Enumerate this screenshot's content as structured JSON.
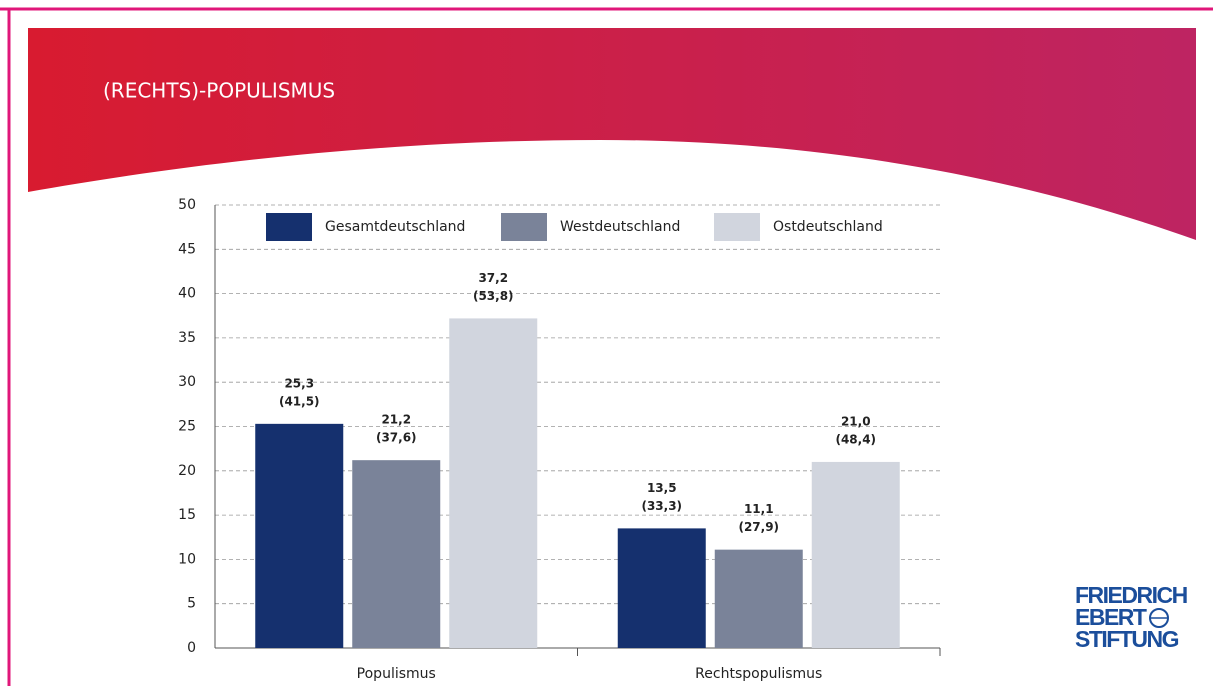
{
  "title": "(RECHTS)-POPULISMUS",
  "logo": [
    "FRIEDRICH",
    "EBERT",
    "STIFTUNG"
  ],
  "chart_data": {
    "type": "bar",
    "categories": [
      "Populismus",
      "Rechtspopulismus"
    ],
    "series": [
      {
        "name": "Gesamtdeutschland",
        "color": "#15306e",
        "values": [
          25.3,
          13.5
        ],
        "value_labels": [
          "25,3",
          "13,5"
        ],
        "paren_labels": [
          "(41,5)",
          "(33,3)"
        ]
      },
      {
        "name": "Westdeutschland",
        "color": "#7a8399",
        "values": [
          21.2,
          11.1
        ],
        "value_labels": [
          "21,2",
          "11,1"
        ],
        "paren_labels": [
          "(37,6)",
          "(27,9)"
        ]
      },
      {
        "name": "Ostdeutschland",
        "color": "#d1d5de",
        "values": [
          37.2,
          21.0
        ],
        "value_labels": [
          "37,2",
          "21,0"
        ],
        "paren_labels": [
          "(53,8)",
          "(48,4)"
        ]
      }
    ],
    "ylim": [
      0,
      50
    ],
    "yticks": [
      0,
      5,
      10,
      15,
      20,
      25,
      30,
      35,
      40,
      45,
      50
    ],
    "grid": true
  }
}
